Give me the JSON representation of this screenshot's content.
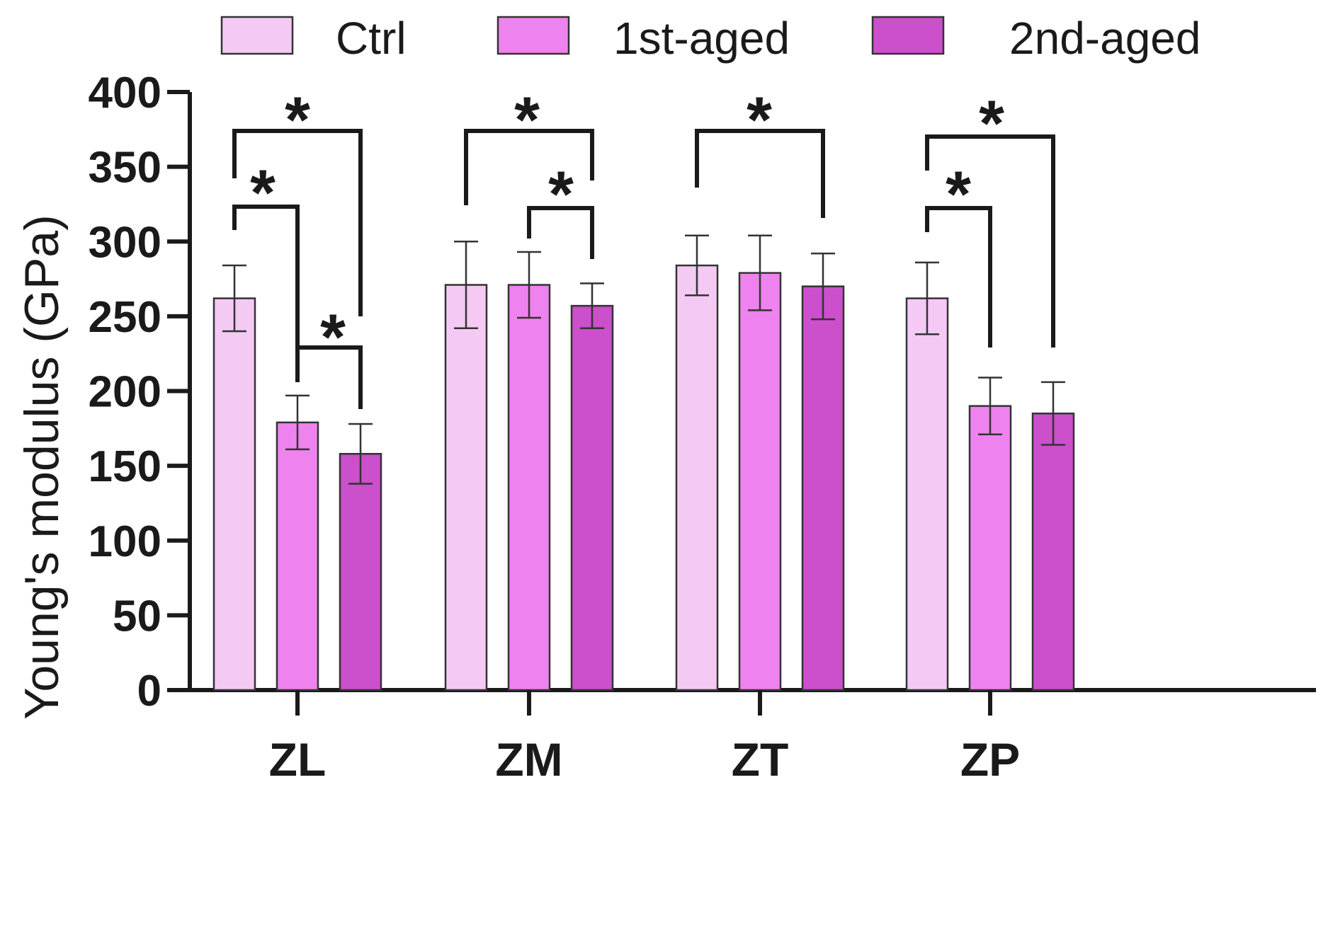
{
  "chart_data": {
    "type": "bar",
    "title": "",
    "xlabel": "",
    "ylabel": "Young's modulus (GPa)",
    "ylim": [
      0,
      400
    ],
    "yticks": [
      "0",
      "50",
      "100",
      "150",
      "200",
      "250",
      "300",
      "350",
      "400"
    ],
    "categories": [
      "ZL",
      "ZM",
      "ZT",
      "ZP"
    ],
    "legend_position": "top",
    "series": [
      {
        "name": "Ctrl",
        "color": "#f4c9f4",
        "values": [
          262,
          271,
          284,
          262
        ],
        "errors": [
          22,
          29,
          20,
          24
        ]
      },
      {
        "name": "1st-aged",
        "color": "#ee82ee",
        "values": [
          179,
          271,
          279,
          190
        ],
        "errors": [
          18,
          22,
          25,
          19
        ]
      },
      {
        "name": "2nd-aged",
        "color": "#cc4fcc",
        "values": [
          158,
          257,
          270,
          185
        ],
        "errors": [
          20,
          15,
          22,
          21
        ]
      }
    ],
    "significance": [
      {
        "category": "ZL",
        "from_series": 0,
        "to_series": 1,
        "label": "*"
      },
      {
        "category": "ZL",
        "from_series": 0,
        "to_series": 2,
        "label": "*"
      },
      {
        "category": "ZL",
        "from_series": 1,
        "to_series": 2,
        "label": "*"
      },
      {
        "category": "ZM",
        "from_series": 0,
        "to_series": 2,
        "label": "*"
      },
      {
        "category": "ZM",
        "from_series": 1,
        "to_series": 2,
        "label": "*"
      },
      {
        "category": "ZT",
        "from_series": 0,
        "to_series": 2,
        "label": "*"
      },
      {
        "category": "ZP",
        "from_series": 0,
        "to_series": 1,
        "label": "*"
      },
      {
        "category": "ZP",
        "from_series": 0,
        "to_series": 2,
        "label": "*"
      }
    ]
  }
}
